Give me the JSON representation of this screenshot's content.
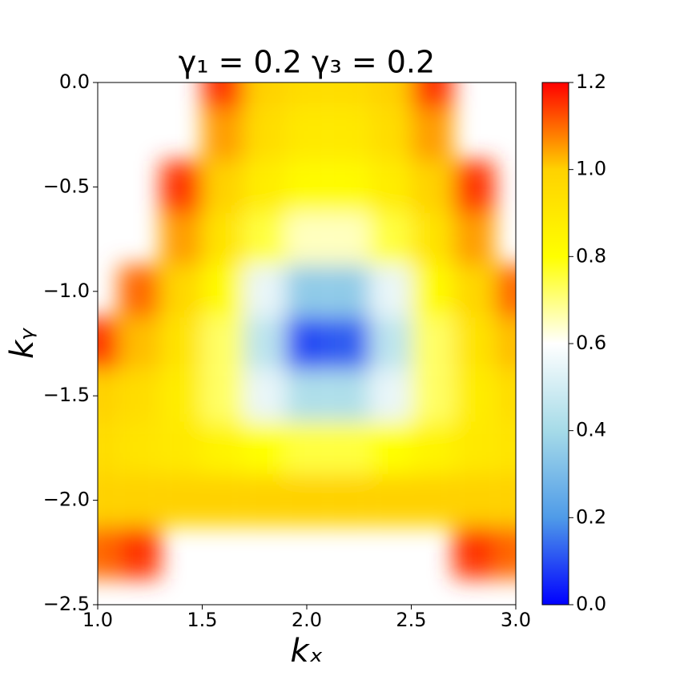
{
  "chart_data": {
    "type": "heatmap",
    "title": "γ₁ = 0.2    γ₃ = 0.2",
    "xlabel": "kₓ",
    "ylabel": "kᵧ",
    "x": [
      1.0,
      1.2,
      1.4,
      1.6,
      1.8,
      2.0,
      2.2,
      2.4,
      2.6,
      2.8,
      3.0
    ],
    "y": [
      0,
      -0.25,
      -0.5,
      -0.75,
      -1.0,
      -1.25,
      -1.5,
      -1.75,
      -2.0,
      -2.25,
      -2.5
    ],
    "z": [
      [
        null,
        null,
        null,
        1.15,
        1.0,
        0.95,
        0.95,
        1.0,
        1.15,
        null,
        null
      ],
      [
        null,
        null,
        null,
        1.05,
        0.95,
        0.9,
        0.9,
        0.95,
        1.05,
        null,
        null
      ],
      [
        null,
        null,
        1.15,
        1.0,
        0.88,
        0.82,
        0.82,
        0.88,
        1.0,
        1.15,
        null
      ],
      [
        null,
        null,
        1.05,
        0.92,
        0.75,
        0.65,
        0.65,
        0.75,
        0.92,
        1.05,
        null
      ],
      [
        null,
        1.1,
        0.98,
        0.82,
        0.55,
        0.35,
        0.35,
        0.55,
        0.82,
        0.98,
        1.1
      ],
      [
        1.15,
        1.02,
        0.92,
        0.72,
        0.45,
        0.1,
        0.12,
        0.45,
        0.72,
        0.92,
        1.02
      ],
      [
        1.0,
        0.95,
        0.88,
        0.72,
        0.55,
        0.42,
        0.42,
        0.55,
        0.72,
        0.88,
        0.95
      ],
      [
        0.95,
        0.92,
        0.9,
        0.85,
        0.8,
        0.75,
        0.75,
        0.8,
        0.85,
        0.9,
        0.92
      ],
      [
        1.0,
        1.0,
        1.0,
        1.0,
        1.0,
        1.0,
        1.0,
        1.0,
        1.0,
        1.0,
        1.0
      ],
      [
        1.1,
        1.15,
        null,
        null,
        null,
        null,
        null,
        null,
        null,
        1.15,
        1.1
      ],
      [
        null,
        null,
        null,
        null,
        null,
        null,
        null,
        null,
        null,
        null,
        null
      ]
    ],
    "xlim": [
      1.0,
      3.0
    ],
    "ylim": [
      -2.5,
      0
    ],
    "xticks": [
      {
        "value": 1,
        "label": "1.0"
      },
      {
        "value": 1.5,
        "label": "1.5"
      },
      {
        "value": 2,
        "label": "2.0"
      },
      {
        "value": 2.5,
        "label": "2.5"
      },
      {
        "value": 3,
        "label": "3.0"
      }
    ],
    "yticks": [
      {
        "value": 0,
        "label": "0.0"
      },
      {
        "value": -0.5,
        "label": "−0.5"
      },
      {
        "value": -1,
        "label": "−1.0"
      },
      {
        "value": -1.5,
        "label": "−1.5"
      },
      {
        "value": -2,
        "label": "−2.0"
      },
      {
        "value": -2.5,
        "label": "−2.5"
      }
    ],
    "clim": [
      0,
      1.2
    ],
    "cticks": [
      {
        "value": 0,
        "label": "0.0"
      },
      {
        "value": 0.2,
        "label": "0.2"
      },
      {
        "value": 0.4,
        "label": "0.4"
      },
      {
        "value": 0.6,
        "label": "0.6"
      },
      {
        "value": 0.8,
        "label": "0.8"
      },
      {
        "value": 1,
        "label": "1.0"
      },
      {
        "value": 1.2,
        "label": "1.2"
      }
    ],
    "colormap": [
      "#0000ff",
      "#4f9be8",
      "#a6dbe8",
      "#ffffff",
      "#ffff00",
      "#ffd200",
      "#ff0000"
    ]
  }
}
